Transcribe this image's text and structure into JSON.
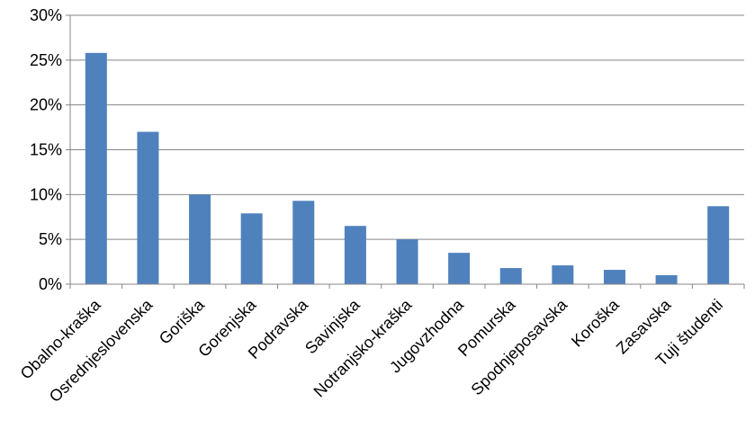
{
  "chart_data": {
    "type": "bar",
    "categories": [
      "Obalno-kraška",
      "Osrednjeslovenska",
      "Goriška",
      "Gorenjska",
      "Podravska",
      "Savinjska",
      "Notranjsko-kraška",
      "Jugovzhodna",
      "Pomurska",
      "Spodnjeposavska",
      "Koroška",
      "Zasavska",
      "Tuji študenti"
    ],
    "values": [
      25.8,
      17.0,
      10.0,
      7.9,
      9.3,
      6.5,
      5.0,
      3.5,
      1.8,
      2.1,
      1.6,
      1.0,
      8.7
    ],
    "yticks": [
      "0%",
      "5%",
      "10%",
      "15%",
      "20%",
      "25%",
      "30%"
    ],
    "ylim": [
      0,
      30
    ],
    "grid": true,
    "legend": "none",
    "bar_color": "#4f81bd"
  }
}
